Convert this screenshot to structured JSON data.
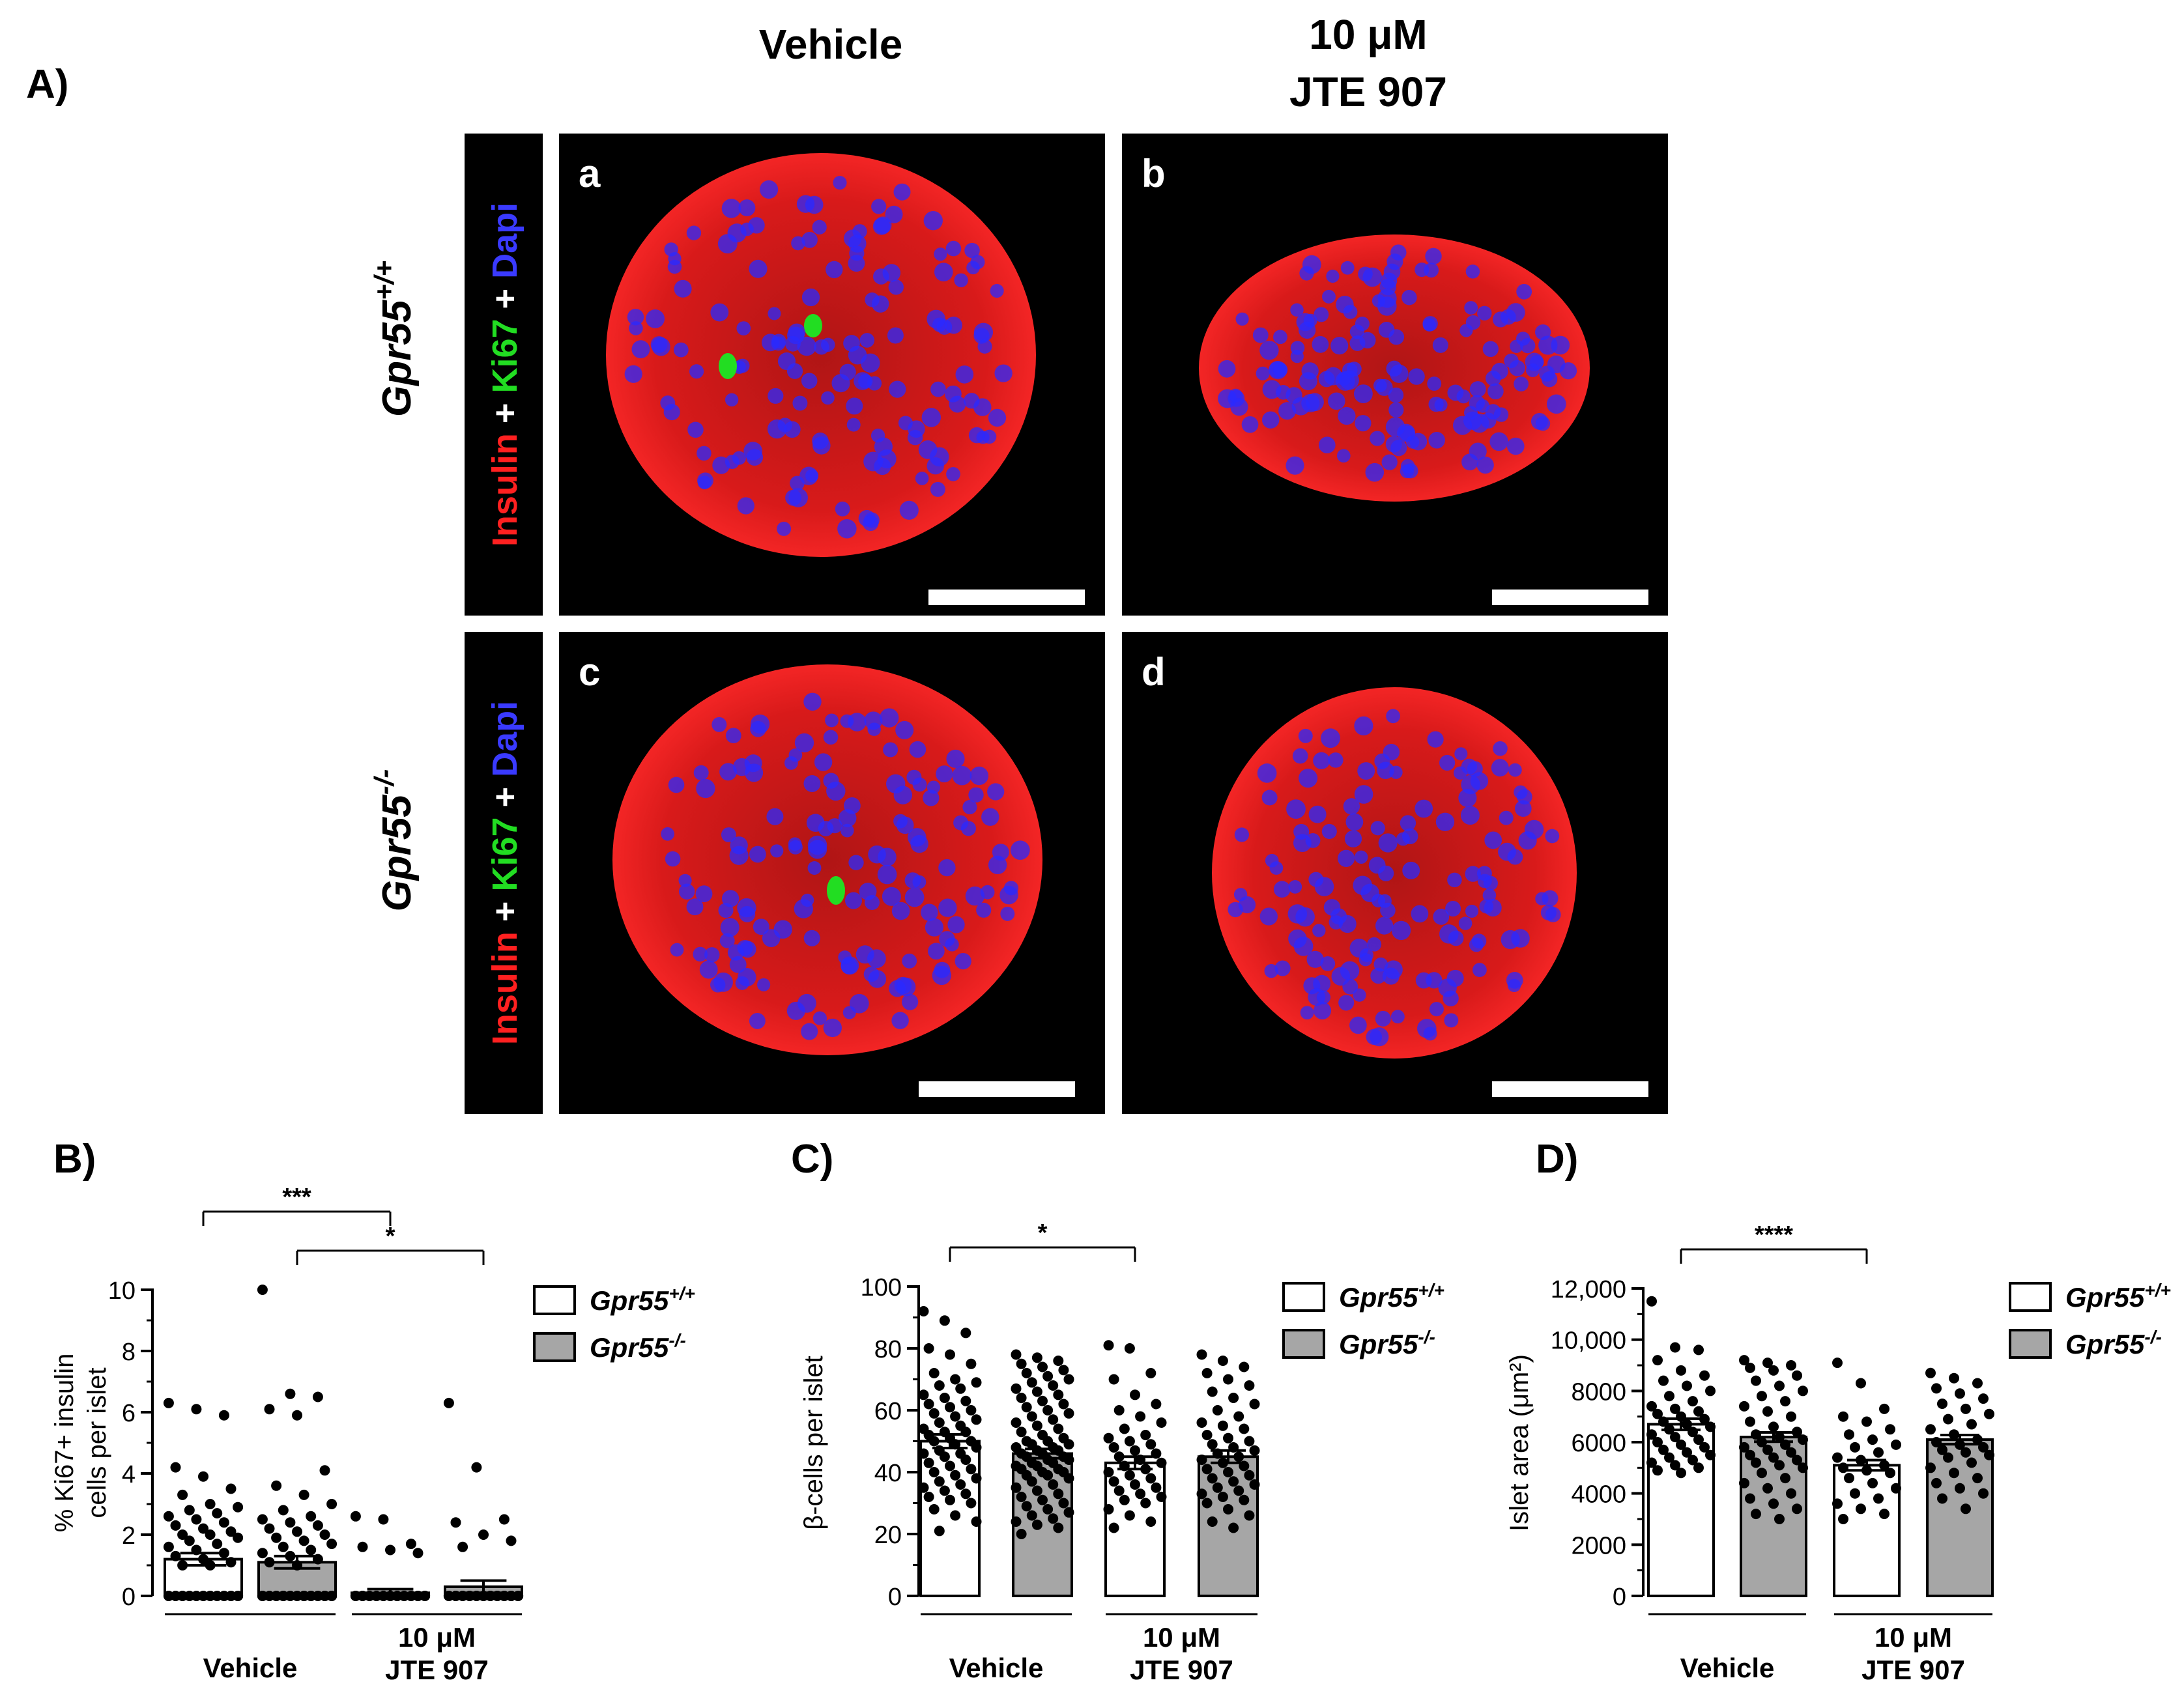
{
  "panelA": {
    "label": "A)",
    "columns": [
      "Vehicle",
      "10 μM",
      "JTE 907"
    ],
    "rows": [
      {
        "genotype_base": "Gpr55",
        "genotype_sup": "+/+"
      },
      {
        "genotype_base": "Gpr55",
        "genotype_sup": "-/-"
      }
    ],
    "stain": {
      "insulin": "Insulin",
      "plus": "+",
      "ki67": "Ki67",
      "dapi": "Dapi"
    },
    "tiles": [
      "a",
      "b",
      "c",
      "d"
    ],
    "colors": {
      "insulin": "#ff1a1a",
      "ki67": "#22dd22",
      "dapi": "#2a2aff",
      "tile_bg": "#000000"
    }
  },
  "legend": {
    "wt_base": "Gpr55",
    "wt_sup": "+/+",
    "ko_base": "Gpr55",
    "ko_sup": "-/-",
    "colors": {
      "wt": "#ffffff",
      "ko": "#a6a6a6"
    }
  },
  "xaxis": {
    "group1": "Vehicle",
    "group2_line1": "10 μM",
    "group2_line2": "JTE 907"
  },
  "chart_data": [
    {
      "panel": "B)",
      "type": "bar",
      "ylabel_line1": "% Ki67+ insulin",
      "ylabel_line2": "cells per islet",
      "ylim": [
        0,
        10
      ],
      "yticks": [
        0,
        2,
        4,
        6,
        8,
        10
      ],
      "ytick_labels": [
        "0",
        "2",
        "4",
        "6",
        "8",
        "10"
      ],
      "groups": [
        "Gpr55+/+ Vehicle",
        "Gpr55-/- Vehicle",
        "Gpr55+/+ 10 μM JTE 907",
        "Gpr55-/- 10 μM JTE 907"
      ],
      "values": [
        1.2,
        1.1,
        0.1,
        0.3
      ],
      "errors": [
        0.2,
        0.2,
        0.12,
        0.2
      ],
      "points": [
        [
          6.3,
          6.1,
          5.9,
          4.2,
          3.9,
          3.5,
          3.3,
          3.0,
          2.9,
          2.8,
          2.7,
          2.6,
          2.5,
          2.4,
          2.3,
          2.2,
          2.1,
          2.0,
          2.0,
          1.9,
          1.8,
          1.7,
          1.6,
          1.5,
          1.4,
          1.3,
          1.2,
          1.1,
          1.0,
          1.0,
          0,
          0,
          0,
          0,
          0,
          0,
          0,
          0,
          0,
          0,
          0,
          0,
          0,
          0,
          0,
          0,
          0,
          0,
          0,
          0,
          0,
          0,
          0
        ],
        [
          10.0,
          6.6,
          6.5,
          6.1,
          5.9,
          4.1,
          3.6,
          3.3,
          3.0,
          2.8,
          2.6,
          2.5,
          2.4,
          2.3,
          2.2,
          2.1,
          2.0,
          1.9,
          1.8,
          1.7,
          1.6,
          1.5,
          1.4,
          1.3,
          1.2,
          1.1,
          1.0,
          0,
          0,
          0,
          0,
          0,
          0,
          0,
          0,
          0,
          0,
          0,
          0,
          0,
          0,
          0,
          0,
          0,
          0,
          0,
          0,
          0,
          0,
          0,
          0,
          0,
          0,
          0,
          0,
          0
        ],
        [
          2.6,
          2.5,
          1.7,
          1.6,
          1.5,
          1.4,
          0,
          0,
          0,
          0,
          0,
          0,
          0,
          0,
          0,
          0,
          0,
          0,
          0,
          0,
          0,
          0,
          0,
          0,
          0,
          0,
          0,
          0,
          0,
          0,
          0,
          0,
          0,
          0,
          0,
          0,
          0,
          0,
          0
        ],
        [
          6.3,
          4.2,
          2.5,
          2.4,
          2.0,
          1.8,
          1.6,
          0,
          0,
          0,
          0,
          0,
          0,
          0,
          0,
          0,
          0,
          0,
          0,
          0,
          0,
          0,
          0,
          0,
          0,
          0,
          0,
          0,
          0,
          0,
          0,
          0,
          0,
          0,
          0,
          0,
          0,
          0,
          0
        ]
      ],
      "significance": [
        {
          "from": 0,
          "to": 2,
          "label": "***"
        },
        {
          "from": 1,
          "to": 3,
          "label": "*"
        }
      ]
    },
    {
      "panel": "C)",
      "type": "bar",
      "ylabel_line1": "β-cells per islet",
      "ylabel_line2": "",
      "ylim": [
        0,
        100
      ],
      "yticks": [
        0,
        20,
        40,
        60,
        80,
        100
      ],
      "ytick_labels": [
        "0",
        "20",
        "40",
        "60",
        "80",
        "100"
      ],
      "groups": [
        "Gpr55+/+ Vehicle",
        "Gpr55-/- Vehicle",
        "Gpr55+/+ 10 μM JTE 907",
        "Gpr55-/- 10 μM JTE 907"
      ],
      "values": [
        50,
        46,
        43,
        45
      ],
      "errors": [
        2.2,
        1.5,
        2.0,
        2.0
      ],
      "points": [
        [
          92,
          89,
          85,
          80,
          78,
          75,
          72,
          70,
          69,
          68,
          67,
          65,
          64,
          63,
          62,
          61,
          60,
          59,
          58,
          57,
          56,
          55,
          54,
          53,
          53,
          52,
          51,
          50,
          50,
          49,
          48,
          47,
          46,
          46,
          45,
          44,
          43,
          42,
          41,
          40,
          39,
          38,
          37,
          36,
          35,
          34,
          33,
          32,
          31,
          30,
          28,
          26,
          24,
          21
        ],
        [
          78,
          77,
          76,
          75,
          74,
          73,
          72,
          71,
          70,
          69,
          68,
          67,
          66,
          65,
          64,
          63,
          62,
          61,
          60,
          59,
          58,
          57,
          56,
          55,
          54,
          53,
          52,
          51,
          50,
          50,
          49,
          49,
          48,
          48,
          47,
          47,
          46,
          46,
          45,
          45,
          44,
          44,
          43,
          43,
          42,
          42,
          41,
          41,
          40,
          40,
          39,
          39,
          38,
          37,
          36,
          35,
          34,
          33,
          32,
          31,
          30,
          29,
          28,
          27,
          26,
          25,
          24,
          23,
          22,
          20
        ],
        [
          81,
          80,
          72,
          70,
          65,
          62,
          60,
          58,
          56,
          54,
          52,
          51,
          50,
          49,
          48,
          47,
          46,
          45,
          44,
          43,
          42,
          41,
          40,
          39,
          38,
          37,
          36,
          35,
          34,
          33,
          32,
          31,
          30,
          28,
          26,
          24,
          22
        ],
        [
          78,
          76,
          74,
          72,
          70,
          68,
          66,
          64,
          62,
          60,
          58,
          56,
          55,
          54,
          52,
          51,
          50,
          49,
          48,
          47,
          46,
          45,
          44,
          43,
          42,
          41,
          40,
          39,
          38,
          37,
          36,
          35,
          34,
          33,
          32,
          31,
          30,
          28,
          26,
          24,
          22
        ]
      ],
      "significance": [
        {
          "from": 0,
          "to": 2,
          "label": "*"
        }
      ]
    },
    {
      "panel": "D)",
      "type": "bar",
      "ylabel_line1": "Islet area (μm²)",
      "ylabel_line2": "",
      "ylim": [
        0,
        12000
      ],
      "yticks": [
        0,
        2000,
        4000,
        6000,
        8000,
        10000,
        12000
      ],
      "ytick_labels": [
        "0",
        "2000",
        "4000",
        "6000",
        "8000",
        "10,000",
        "12,000"
      ],
      "groups": [
        "Gpr55+/+ Vehicle",
        "Gpr55-/- Vehicle",
        "Gpr55+/+ 10 μM JTE 907",
        "Gpr55-/- 10 μM JTE 907"
      ],
      "values": [
        6700,
        6200,
        5100,
        6100
      ],
      "errors": [
        220,
        180,
        200,
        180
      ],
      "points": [
        [
          11500,
          9700,
          9600,
          9200,
          8800,
          8600,
          8400,
          8200,
          8000,
          7800,
          7600,
          7400,
          7300,
          7200,
          7100,
          7000,
          6900,
          6800,
          6700,
          6600,
          6500,
          6400,
          6300,
          6200,
          6100,
          6000,
          5900,
          5800,
          5700,
          5600,
          5500,
          5400,
          5300,
          5200,
          5100,
          5000,
          4900,
          4800
        ],
        [
          9200,
          9100,
          9000,
          8900,
          8800,
          8600,
          8400,
          8200,
          8000,
          7800,
          7600,
          7400,
          7200,
          7000,
          6800,
          6600,
          6400,
          6300,
          6200,
          6100,
          6000,
          5900,
          5800,
          5700,
          5600,
          5500,
          5400,
          5300,
          5200,
          5100,
          5000,
          4800,
          4600,
          4400,
          4200,
          4000,
          3800,
          3600,
          3400,
          3200,
          3000
        ],
        [
          9100,
          8300,
          7300,
          7000,
          6800,
          6500,
          6300,
          6100,
          5900,
          5800,
          5600,
          5400,
          5300,
          5100,
          5000,
          4900,
          4800,
          4600,
          4400,
          4200,
          4000,
          3800,
          3600,
          3400,
          3200,
          3000
        ],
        [
          8700,
          8500,
          8300,
          8100,
          7900,
          7700,
          7500,
          7300,
          7100,
          6900,
          6700,
          6500,
          6300,
          6100,
          6000,
          5900,
          5800,
          5700,
          5600,
          5500,
          5400,
          5200,
          5000,
          4800,
          4600,
          4400,
          4200,
          4000,
          3800,
          3400
        ]
      ],
      "significance": [
        {
          "from": 0,
          "to": 2,
          "label": "****"
        }
      ]
    }
  ]
}
